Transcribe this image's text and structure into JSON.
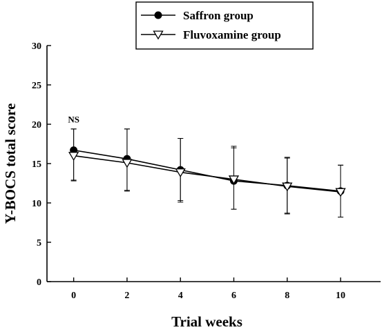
{
  "chart_data": {
    "type": "line",
    "title": "",
    "xlabel": "Trial weeks",
    "ylabel": "Y-BOCS total score",
    "x": [
      0,
      2,
      4,
      6,
      8,
      10
    ],
    "xticks": [
      "0",
      "2",
      "4",
      "6",
      "8",
      "10"
    ],
    "yticks": [
      "0",
      "5",
      "10",
      "15",
      "20",
      "25",
      "30"
    ],
    "xlim": [
      -1,
      11.5
    ],
    "ylim": [
      0,
      30
    ],
    "grid": false,
    "legend_position": "top-center",
    "annotations": [
      {
        "text": "NS",
        "x": 0,
        "y": 20.2
      }
    ],
    "series": [
      {
        "name": "Saffron group",
        "marker": "filled-circle",
        "color": "#000000",
        "values": [
          16.7,
          15.6,
          14.2,
          12.8,
          12.2,
          11.5
        ],
        "error_plus": [
          2.7,
          3.8,
          4.0,
          4.2,
          3.6,
          3.3
        ],
        "error_minus": [
          3.9,
          4.1,
          4.1,
          3.6,
          3.6,
          3.3
        ]
      },
      {
        "name": "Fluvoxamine group",
        "marker": "open-triangle-down",
        "color": "#000000",
        "values": [
          16.0,
          15.1,
          13.9,
          13.0,
          12.1,
          11.4
        ],
        "error_plus": [
          3.4,
          4.3,
          4.3,
          4.2,
          3.6,
          3.4
        ],
        "error_minus": [
          3.1,
          3.5,
          3.6,
          3.8,
          3.4,
          3.2
        ]
      }
    ]
  }
}
